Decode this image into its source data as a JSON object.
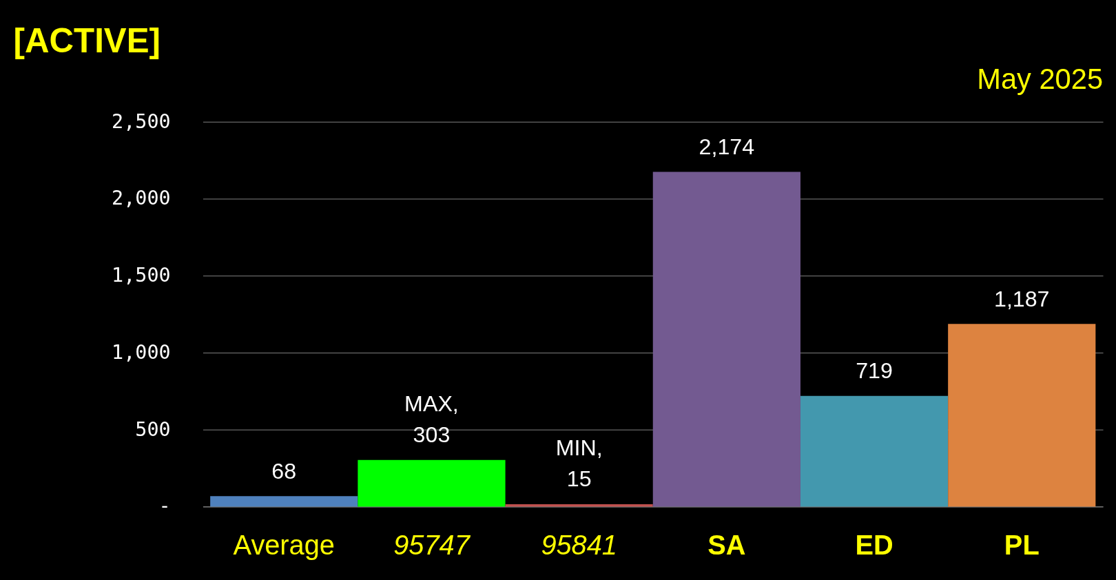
{
  "chart_data": {
    "type": "bar",
    "title": "[ACTIVE]",
    "subtitle": "May 2025",
    "categories": [
      "Average",
      "95747",
      "95841",
      "SA",
      "ED",
      "PL"
    ],
    "values": [
      68,
      303,
      15,
      2174,
      719,
      1187
    ],
    "colors": [
      "#4f81bd",
      "#00ff00",
      "#c0504d",
      "#735a91",
      "#4398ae",
      "#dd8340"
    ],
    "value_labels": [
      "68",
      "MAX,\n303",
      "MIN,\n15",
      "2,174",
      "719",
      "1,187"
    ],
    "ylim": [
      0,
      2500
    ],
    "yticks": [
      {
        "value": 0,
        "label": "-"
      },
      500,
      {
        "value": 1000,
        "label": "1,000"
      },
      {
        "value": 1500,
        "label": "1,500"
      },
      {
        "value": 2000,
        "label": "2,000"
      },
      {
        "value": 2500,
        "label": "2,500"
      }
    ],
    "grid": "y",
    "legend": false
  }
}
